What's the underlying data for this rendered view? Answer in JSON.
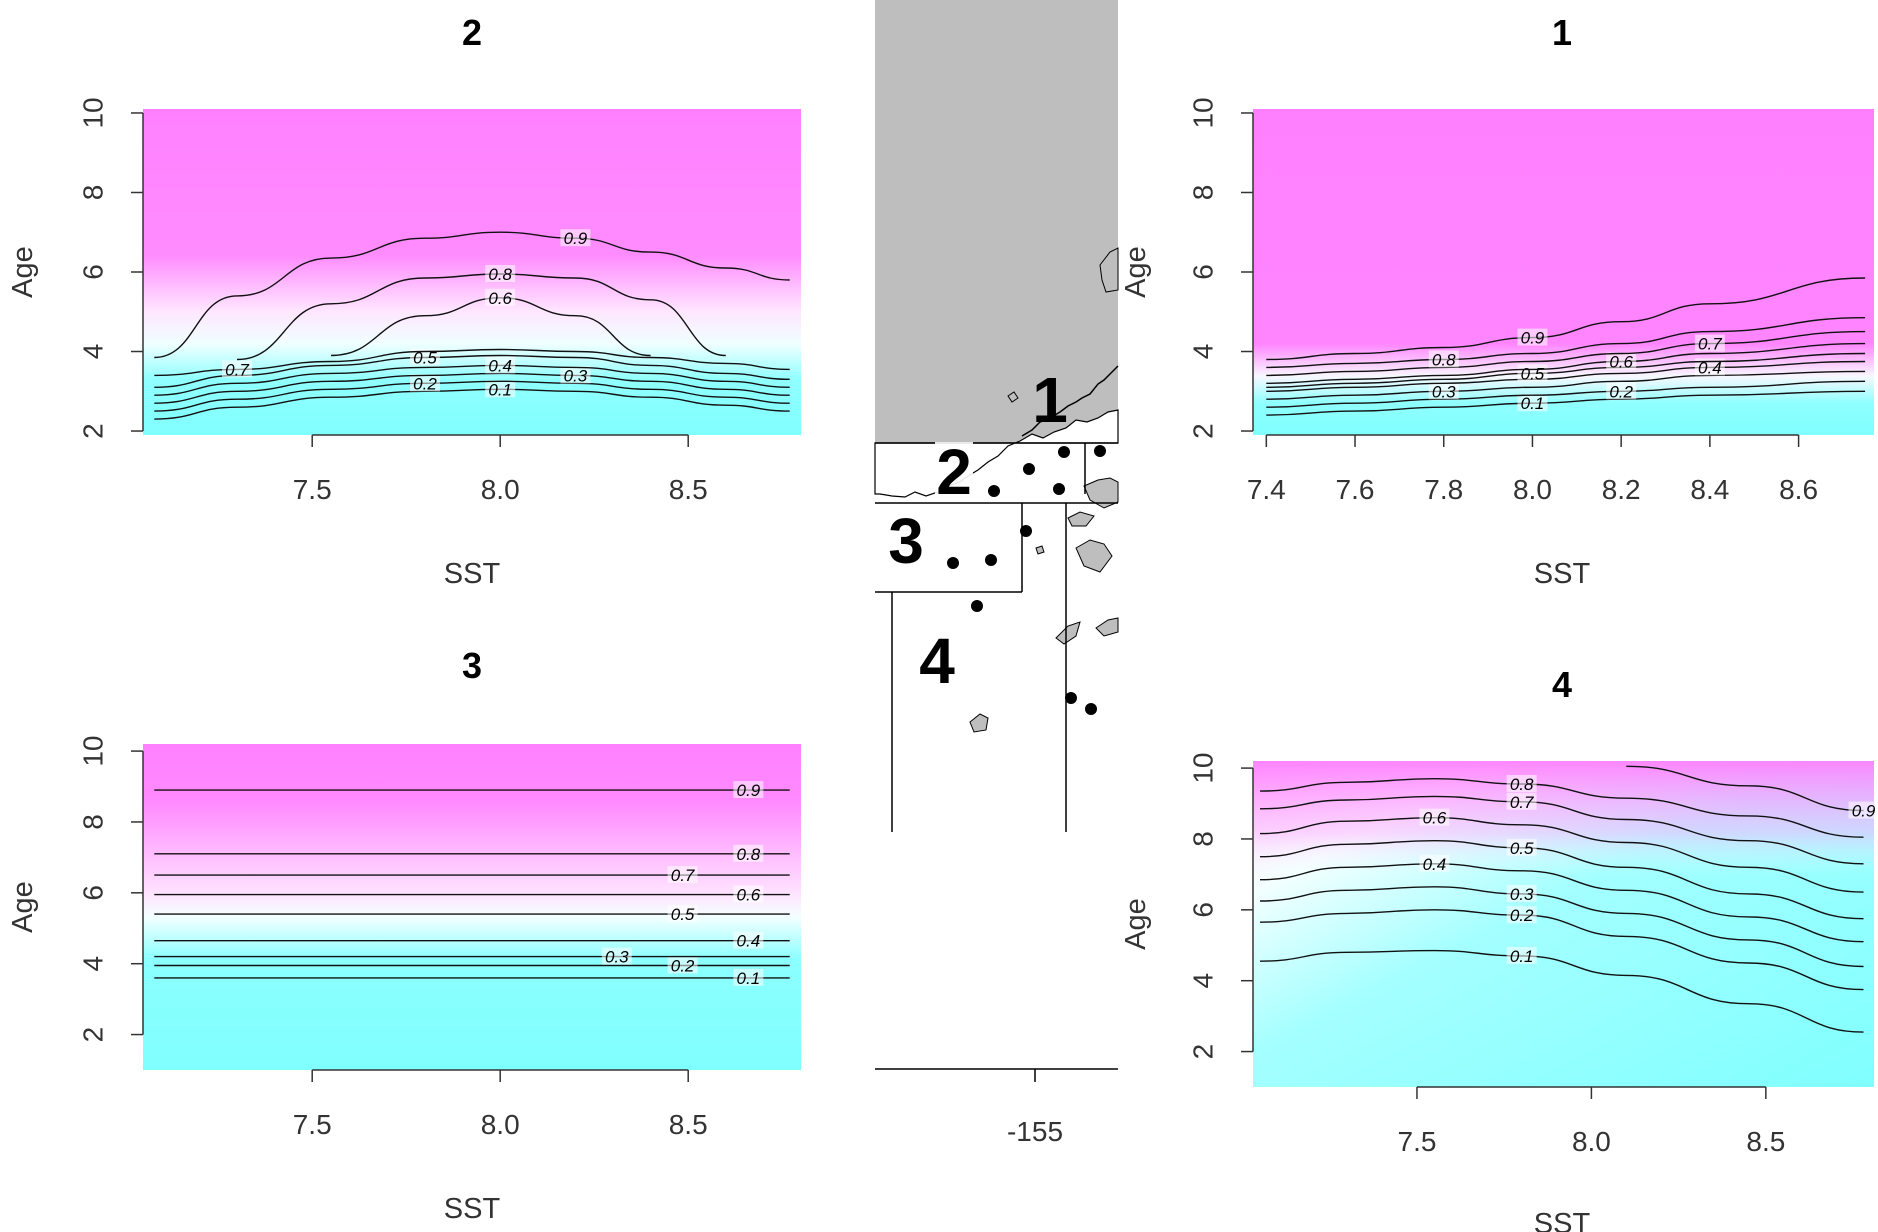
{
  "figure": {
    "panels": [
      {
        "id": "p2",
        "title": "2",
        "xlabel": "SST",
        "ylabel": "Age",
        "xticks": [
          "7.5",
          "8.0",
          "8.5"
        ],
        "yticks": [
          "2",
          "4",
          "6",
          "8",
          "10"
        ],
        "xlim": [
          7.05,
          8.8
        ],
        "ylim": [
          1.9,
          10.1
        ],
        "contours": [
          {
            "label": "0.1",
            "y": [
              2.3,
              2.6,
              2.85,
              3.0,
              3.05,
              3.0,
              2.85,
              2.65,
              2.5
            ]
          },
          {
            "label": "0.2",
            "y": [
              2.5,
              2.8,
              3.05,
              3.2,
              3.25,
              3.2,
              3.05,
              2.85,
              2.7
            ]
          },
          {
            "label": "0.3",
            "y": [
              2.7,
              3.0,
              3.25,
              3.4,
              3.45,
              3.4,
              3.25,
              3.05,
              2.9
            ]
          },
          {
            "label": "0.4",
            "y": [
              2.9,
              3.2,
              3.45,
              3.6,
              3.65,
              3.6,
              3.45,
              3.25,
              3.1
            ]
          },
          {
            "label": "0.5",
            "y": [
              3.1,
              3.4,
              3.65,
              3.85,
              3.9,
              3.85,
              3.65,
              3.45,
              3.3
            ]
          },
          {
            "label": "0.7",
            "y": [
              3.4,
              3.55,
              3.75,
              4.0,
              4.05,
              4.0,
              3.85,
              3.7,
              3.55
            ]
          },
          {
            "label": "0.6",
            "y": [
              null,
              null,
              3.9,
              4.9,
              5.35,
              4.9,
              3.9,
              null,
              null
            ]
          },
          {
            "label": "0.8",
            "y": [
              null,
              3.8,
              5.2,
              5.85,
              5.95,
              5.85,
              5.3,
              3.9,
              null
            ]
          },
          {
            "label": "0.9",
            "y": [
              3.85,
              5.4,
              6.35,
              6.85,
              7.0,
              6.85,
              6.5,
              6.1,
              5.8
            ]
          }
        ]
      },
      {
        "id": "p1",
        "title": "1",
        "xlabel": "SST",
        "ylabel": "Age",
        "xticks": [
          "7.4",
          "7.6",
          "7.8",
          "8.0",
          "8.2",
          "8.4",
          "8.6"
        ],
        "yticks": [
          "2",
          "4",
          "6",
          "8",
          "10"
        ],
        "xlim": [
          7.37,
          8.77
        ],
        "ylim": [
          1.9,
          10.1
        ],
        "contours": [
          {
            "label": "0.1",
            "y": [
              2.4,
              2.5,
              2.6,
              2.7,
              2.8,
              2.9,
              3.0
            ]
          },
          {
            "label": "0.2",
            "y": [
              2.6,
              2.7,
              2.8,
              2.9,
              3.0,
              3.1,
              3.25
            ]
          },
          {
            "label": "0.3",
            "y": [
              2.8,
              2.9,
              3.0,
              3.1,
              3.25,
              3.4,
              3.5
            ]
          },
          {
            "label": "0.4",
            "y": [
              3.0,
              3.1,
              3.2,
              3.3,
              3.45,
              3.6,
              3.75
            ]
          },
          {
            "label": "0.5",
            "y": [
              3.1,
              3.2,
              3.3,
              3.45,
              3.6,
              3.75,
              3.95
            ]
          },
          {
            "label": "0.6",
            "y": [
              3.2,
              3.3,
              3.4,
              3.55,
              3.75,
              3.95,
              4.2
            ]
          },
          {
            "label": "0.7",
            "y": [
              3.4,
              3.5,
              3.6,
              3.75,
              3.95,
              4.2,
              4.5
            ]
          },
          {
            "label": "0.8",
            "y": [
              3.6,
              3.7,
              3.8,
              3.95,
              4.2,
              4.5,
              4.85
            ]
          },
          {
            "label": "0.9",
            "y": [
              3.8,
              3.95,
              4.1,
              4.35,
              4.75,
              5.2,
              5.85
            ]
          }
        ]
      },
      {
        "id": "p3",
        "title": "3",
        "xlabel": "SST",
        "ylabel": "Age",
        "xticks": [
          "7.5",
          "8.0",
          "8.5"
        ],
        "yticks": [
          "2",
          "4",
          "6",
          "8",
          "10"
        ],
        "xlim": [
          7.05,
          8.8
        ],
        "ylim": [
          1.0,
          10.2
        ],
        "contours": [
          {
            "label": "0.1",
            "y": [
              3.6,
              3.6
            ]
          },
          {
            "label": "0.2",
            "y": [
              3.95,
              3.95
            ]
          },
          {
            "label": "0.3",
            "y": [
              4.2,
              4.2
            ]
          },
          {
            "label": "0.4",
            "y": [
              4.65,
              4.65
            ]
          },
          {
            "label": "0.5",
            "y": [
              5.4,
              5.4
            ]
          },
          {
            "label": "0.6",
            "y": [
              5.95,
              5.95
            ]
          },
          {
            "label": "0.7",
            "y": [
              6.5,
              6.5
            ]
          },
          {
            "label": "0.8",
            "y": [
              7.1,
              7.1
            ]
          },
          {
            "label": "0.9",
            "y": [
              8.9,
              8.9
            ]
          }
        ]
      },
      {
        "id": "p4",
        "title": "4",
        "xlabel": "SST",
        "ylabel": "Age",
        "xticks": [
          "7.5",
          "8.0",
          "8.5"
        ],
        "yticks": [
          "2",
          "4",
          "6",
          "8",
          "10"
        ],
        "xlim": [
          7.03,
          8.81
        ],
        "ylim": [
          1.0,
          10.2
        ],
        "contours": [
          {
            "label": "0.1",
            "y": [
              4.55,
              4.8,
              4.85,
              4.7,
              4.15,
              3.35,
              2.55
            ]
          },
          {
            "label": "0.2",
            "y": [
              5.65,
              5.9,
              6.0,
              5.85,
              5.25,
              4.5,
              3.75
            ]
          },
          {
            "label": "0.3",
            "y": [
              6.25,
              6.55,
              6.65,
              6.45,
              5.9,
              5.15,
              4.4
            ]
          },
          {
            "label": "0.4",
            "y": [
              6.85,
              7.2,
              7.3,
              7.1,
              6.55,
              5.8,
              5.1
            ]
          },
          {
            "label": "0.5",
            "y": [
              7.5,
              7.85,
              7.95,
              7.75,
              7.2,
              6.45,
              5.75
            ]
          },
          {
            "label": "0.6",
            "y": [
              8.15,
              8.5,
              8.6,
              8.4,
              7.9,
              7.2,
              6.5
            ]
          },
          {
            "label": "0.7",
            "y": [
              8.85,
              9.1,
              9.2,
              9.05,
              8.55,
              7.95,
              7.3
            ]
          },
          {
            "label": "0.8",
            "y": [
              9.35,
              9.6,
              9.7,
              9.55,
              9.15,
              8.65,
              8.05
            ]
          },
          {
            "label": "0.9",
            "y": [
              null,
              null,
              null,
              null,
              10.05,
              9.5,
              8.8
            ]
          }
        ]
      }
    ],
    "map": {
      "xtick": "-155",
      "regions": [
        "1",
        "2",
        "3",
        "4"
      ]
    },
    "colors": {
      "high": "#ff80ff",
      "mid": "#ffffff",
      "low": "#80ffff",
      "land": "#bebebe"
    }
  },
  "chart_data": [
    {
      "type": "heatmap",
      "title": "2",
      "xlabel": "SST",
      "ylabel": "Age",
      "xlim": [
        7.05,
        8.8
      ],
      "ylim": [
        1.9,
        10.1
      ],
      "x": [
        7.08,
        7.3,
        7.55,
        7.8,
        8.0,
        8.2,
        8.4,
        8.6,
        8.77
      ],
      "contour_levels": [
        "0.1",
        "0.2",
        "0.3",
        "0.4",
        "0.5",
        "0.6",
        "0.7",
        "0.8",
        "0.9"
      ]
    },
    {
      "type": "heatmap",
      "title": "1",
      "xlabel": "SST",
      "ylabel": "Age",
      "xlim": [
        7.37,
        8.77
      ],
      "ylim": [
        1.9,
        10.1
      ],
      "x": [
        7.4,
        7.6,
        7.8,
        8.0,
        8.2,
        8.4,
        8.75
      ],
      "contour_levels": [
        "0.1",
        "0.2",
        "0.3",
        "0.4",
        "0.5",
        "0.6",
        "0.7",
        "0.8",
        "0.9"
      ]
    },
    {
      "type": "heatmap",
      "title": "3",
      "xlabel": "SST",
      "ylabel": "Age",
      "xlim": [
        7.05,
        8.8
      ],
      "ylim": [
        1.0,
        10.2
      ],
      "x": [
        7.08,
        8.77
      ],
      "contour_levels": [
        "0.1",
        "0.2",
        "0.3",
        "0.4",
        "0.5",
        "0.6",
        "0.7",
        "0.8",
        "0.9"
      ]
    },
    {
      "type": "heatmap",
      "title": "4",
      "xlabel": "SST",
      "ylabel": "Age",
      "xlim": [
        7.03,
        8.81
      ],
      "ylim": [
        1.0,
        10.2
      ],
      "x": [
        7.05,
        7.3,
        7.55,
        7.8,
        8.1,
        8.45,
        8.78
      ],
      "contour_levels": [
        "0.1",
        "0.2",
        "0.3",
        "0.4",
        "0.5",
        "0.6",
        "0.7",
        "0.8",
        "0.9"
      ]
    }
  ]
}
